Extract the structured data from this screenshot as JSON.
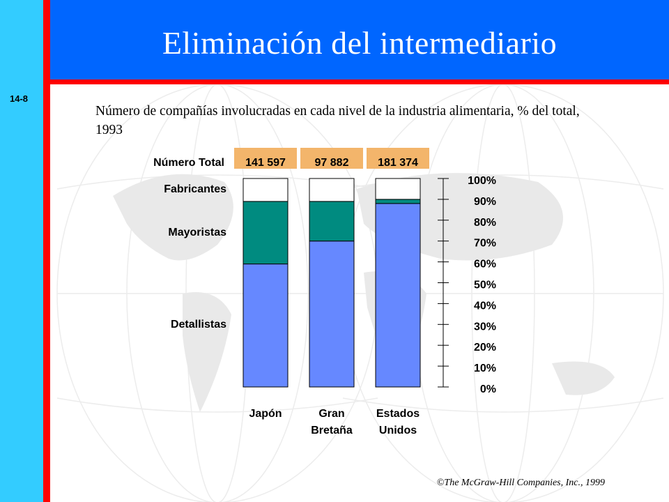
{
  "slide": {
    "number": "14-8",
    "title": "Eliminación del intermediario"
  },
  "subtitle": "Número de compañías involucradas en cada nivel de la industria alimentaria, % del total, 1993",
  "copyright": "©The McGraw-Hill Companies, Inc., 1999",
  "colors": {
    "detallistas": "#6688ff",
    "mayoristas": "#008b80",
    "fabricantes": "#ffffff",
    "total_badge": "#f3b56b",
    "header": "#0066ff",
    "side": "#33ccff",
    "accent": "#ff0000"
  },
  "chart_data": {
    "type": "bar",
    "stacked": true,
    "normalized": true,
    "categories": [
      "Japón",
      "Gran Bretaña",
      "Estados Unidos"
    ],
    "category_lines": [
      [
        "Japón"
      ],
      [
        "Gran",
        "Bretaña"
      ],
      [
        "Estados",
        "Unidos"
      ]
    ],
    "total_label": "Número Total",
    "totals": [
      "141 597",
      "97 882",
      "181 374"
    ],
    "series": [
      {
        "name": "Detallistas",
        "values": [
          59,
          70,
          88
        ],
        "color": "#6688ff"
      },
      {
        "name": "Mayoristas",
        "values": [
          30,
          19,
          2
        ],
        "color": "#008b80"
      },
      {
        "name": "Fabricantes",
        "values": [
          11,
          11,
          10
        ],
        "color": "#ffffff"
      }
    ],
    "ylim": [
      0,
      100
    ],
    "yticks": [
      "0%",
      "10%",
      "20%",
      "30%",
      "40%",
      "50%",
      "60%",
      "70%",
      "80%",
      "90%",
      "100%"
    ],
    "y_axis_position": "right",
    "legend_position": "left"
  }
}
